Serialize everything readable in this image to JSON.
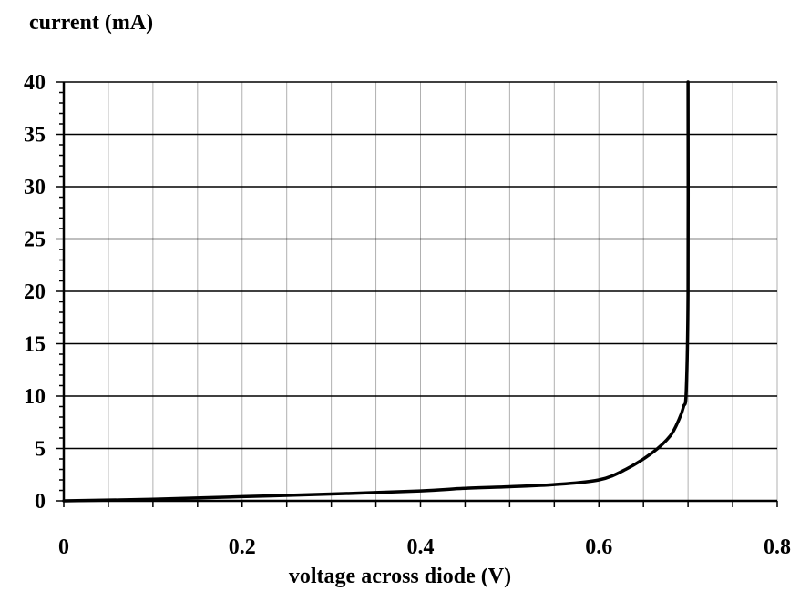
{
  "chart_data": {
    "type": "line",
    "title": "",
    "ylabel": "current (mA)",
    "xlabel": "voltage across diode (V)",
    "xlim": [
      0,
      0.8
    ],
    "ylim": [
      0,
      40
    ],
    "x_ticks": [
      "0",
      "0.2",
      "0.4",
      "0.6",
      "0.8"
    ],
    "y_ticks": [
      "0",
      "5",
      "10",
      "15",
      "20",
      "25",
      "30",
      "35",
      "40"
    ],
    "grid": true,
    "series": [
      {
        "x": [
          0,
          0.1,
          0.2,
          0.3,
          0.4,
          0.45,
          0.5,
          0.55,
          0.6,
          0.63,
          0.66,
          0.68,
          0.69,
          0.695,
          0.698,
          0.7,
          0.7
        ],
        "y": [
          0,
          0.15,
          0.4,
          0.65,
          0.95,
          1.2,
          1.35,
          1.55,
          2.0,
          3.0,
          4.6,
          6.2,
          7.8,
          9.0,
          10.5,
          20,
          40
        ]
      }
    ]
  }
}
